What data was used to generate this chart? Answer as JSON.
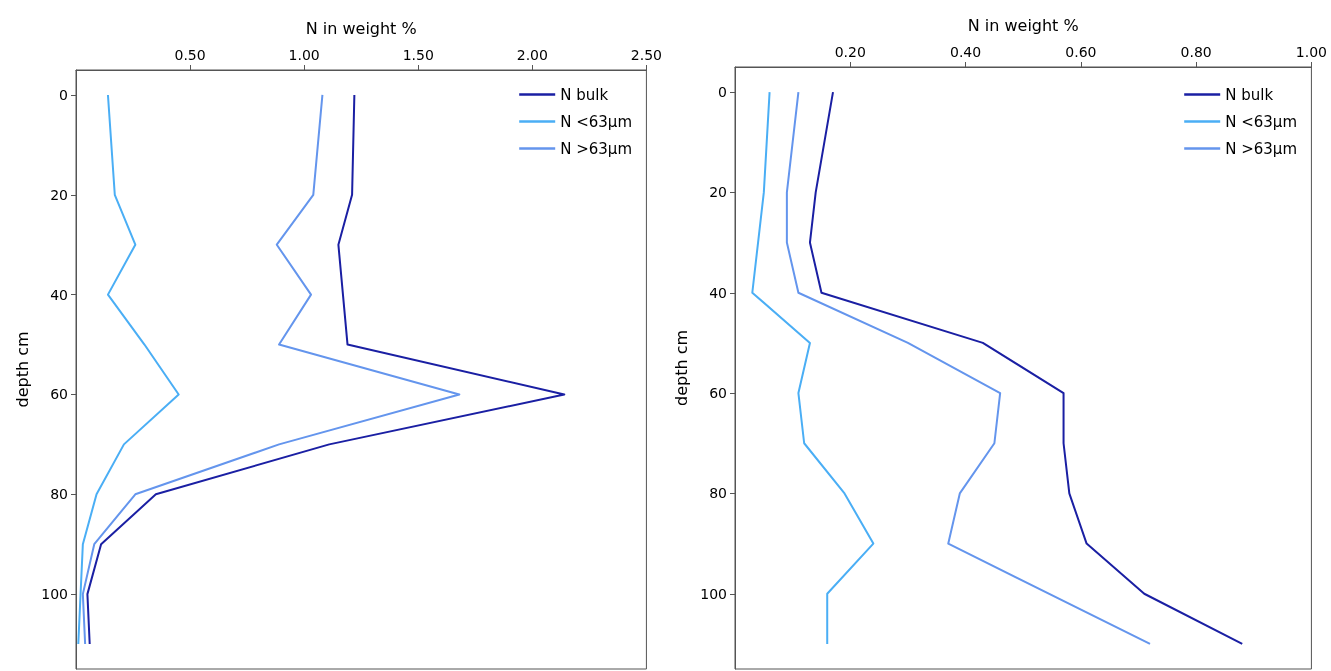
{
  "chart_data": [
    {
      "type": "line",
      "xlabel": "N in weight %",
      "ylabel": "depth cm",
      "xlim": [
        0,
        2.5
      ],
      "xticks": [
        {
          "value": 0.5,
          "label": "0.50"
        },
        {
          "value": 1,
          "label": "1.00"
        },
        {
          "value": 1.5,
          "label": "1.50"
        },
        {
          "value": 2,
          "label": "2.00"
        },
        {
          "value": 2.5,
          "label": "2.50"
        }
      ],
      "ylim": [
        115,
        -5
      ],
      "yticks": [
        0,
        20,
        40,
        60,
        80,
        100
      ],
      "legend": "top right",
      "grid": false,
      "marker": "none",
      "series": [
        {
          "name": "N bulk",
          "color": "#1a1fa3",
          "x": [
            1.22,
            1.21,
            1.15,
            1.17,
            1.19,
            2.14,
            1.11,
            0.35,
            0.11,
            0.05,
            0.06
          ],
          "values": [
            0,
            20,
            30,
            40,
            50,
            60,
            70,
            80,
            90,
            100,
            110
          ]
        },
        {
          "name": "N <63µm",
          "color": "#4aaef5",
          "x": [
            0.14,
            0.17,
            0.26,
            0.14,
            0.3,
            0.45,
            0.21,
            0.09,
            0.03,
            0.02,
            0.01
          ],
          "values": [
            0,
            20,
            30,
            40,
            50,
            60,
            70,
            80,
            90,
            100,
            110
          ]
        },
        {
          "name": "N >63µm",
          "color": "#6495ed",
          "x": [
            1.08,
            1.04,
            0.88,
            1.03,
            0.89,
            1.68,
            0.89,
            0.26,
            0.08,
            0.03,
            0.04
          ],
          "values": [
            0,
            20,
            30,
            40,
            50,
            60,
            70,
            80,
            90,
            100,
            110
          ]
        }
      ]
    },
    {
      "type": "line",
      "xlabel": "N in weight %",
      "ylabel": "depth cm",
      "xlim": [
        0,
        1
      ],
      "xticks": [
        {
          "value": 0.2,
          "label": "0.20"
        },
        {
          "value": 0.4,
          "label": "0.40"
        },
        {
          "value": 0.6,
          "label": "0.60"
        },
        {
          "value": 0.8,
          "label": "0.80"
        },
        {
          "value": 1,
          "label": "1.00"
        }
      ],
      "ylim": [
        115,
        -5
      ],
      "yticks": [
        0,
        20,
        40,
        60,
        80,
        100
      ],
      "legend": "top right",
      "grid": false,
      "marker": "none",
      "series": [
        {
          "name": "N bulk",
          "color": "#1a1fa3",
          "x": [
            0.17,
            0.14,
            0.13,
            0.15,
            0.43,
            0.57,
            0.57,
            0.58,
            0.61,
            0.71,
            0.88
          ],
          "values": [
            0,
            20,
            30,
            40,
            50,
            60,
            70,
            80,
            90,
            100,
            110
          ]
        },
        {
          "name": "N <63µm",
          "color": "#4aaef5",
          "x": [
            0.06,
            0.05,
            0.04,
            0.03,
            0.13,
            0.11,
            0.12,
            0.19,
            0.24,
            0.16,
            0.16
          ],
          "values": [
            0,
            20,
            30,
            40,
            50,
            60,
            70,
            80,
            90,
            100,
            110
          ]
        },
        {
          "name": "N >63µm",
          "color": "#6495ed",
          "x": [
            0.11,
            0.09,
            0.09,
            0.11,
            0.3,
            0.46,
            0.45,
            0.39,
            0.37,
            0.72
          ],
          "values": [
            0,
            20,
            30,
            40,
            50,
            60,
            70,
            80,
            90,
            110
          ]
        }
      ]
    }
  ]
}
